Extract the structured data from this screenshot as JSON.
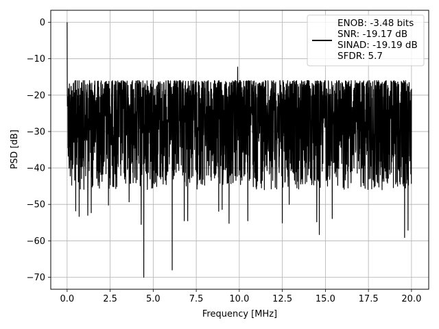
{
  "chart_data": {
    "type": "line",
    "title": "",
    "xlabel": "Frequency [MHz]",
    "ylabel": "PSD [dB]",
    "xlim": [
      -0.95,
      21.0
    ],
    "ylim": [
      -73.3,
      3.3
    ],
    "xticks": [
      0.0,
      2.5,
      5.0,
      7.5,
      10.0,
      12.5,
      15.0,
      17.5,
      20.0
    ],
    "xtick_labels": [
      "0.0",
      "2.5",
      "5.0",
      "7.5",
      "10.0",
      "12.5",
      "15.0",
      "17.5",
      "20.0"
    ],
    "yticks": [
      0,
      -10,
      -20,
      -30,
      -40,
      -50,
      -60,
      -70
    ],
    "ytick_labels": [
      "0",
      "−10",
      "−20",
      "−30",
      "−40",
      "−50",
      "−60",
      "−70"
    ],
    "grid": true,
    "legend": {
      "position": "top-right",
      "lines": [
        "ENOB: -3.48 bits",
        "SNR: -19.17 dB",
        "SINAD: -19.19 dB",
        "SFDR: 5.7"
      ]
    },
    "series": [
      {
        "color": "#000000",
        "noise_floor_range": [
          -46,
          -16
        ],
        "peaks": [
          [
            0.0,
            0.0
          ],
          [
            9.9,
            -12.3
          ]
        ],
        "dips": [
          [
            0.5,
            -51.8
          ],
          [
            0.7,
            -53.3
          ],
          [
            1.2,
            -53.0
          ],
          [
            1.4,
            -52.3
          ],
          [
            2.4,
            -50.2
          ],
          [
            3.6,
            -49.3
          ],
          [
            4.3,
            -55.5
          ],
          [
            4.45,
            -70.0
          ],
          [
            6.1,
            -68.0
          ],
          [
            6.8,
            -54.5
          ],
          [
            7.0,
            -54.5
          ],
          [
            8.8,
            -51.9
          ],
          [
            9.0,
            -51.4
          ],
          [
            9.4,
            -55.2
          ],
          [
            10.5,
            -54.5
          ],
          [
            12.5,
            -55.1
          ],
          [
            12.9,
            -50.0
          ],
          [
            14.5,
            -54.8
          ],
          [
            14.65,
            -58.3
          ],
          [
            15.4,
            -53.9
          ],
          [
            19.6,
            -59.1
          ],
          [
            19.8,
            -57.1
          ]
        ]
      }
    ]
  }
}
